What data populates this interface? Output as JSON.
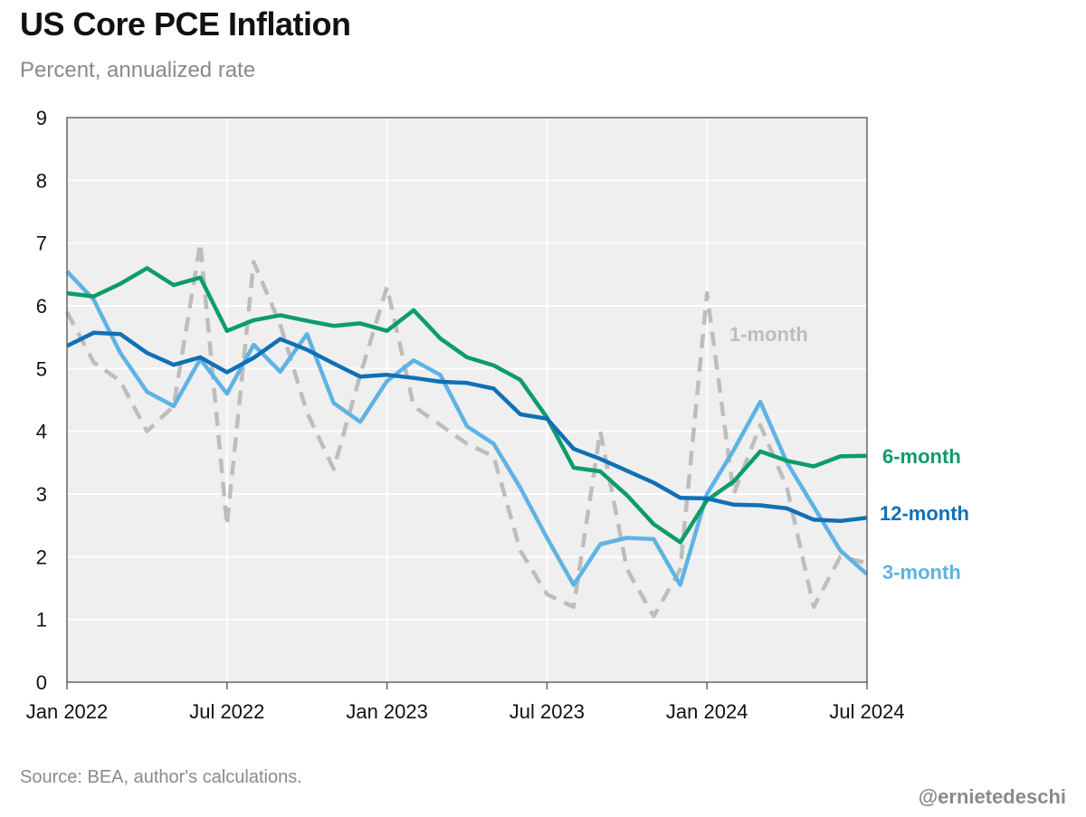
{
  "header": {
    "title": "US Core PCE Inflation",
    "subtitle": "Percent, annualized rate"
  },
  "footer": {
    "source": "Source: BEA, author's calculations.",
    "handle": "@ernietedeschi"
  },
  "chart_data": {
    "type": "line",
    "title": "US Core PCE Inflation",
    "subtitle": "Percent, annualized rate",
    "x": [
      "2022-01",
      "2022-02",
      "2022-03",
      "2022-04",
      "2022-05",
      "2022-06",
      "2022-07",
      "2022-08",
      "2022-09",
      "2022-10",
      "2022-11",
      "2022-12",
      "2023-01",
      "2023-02",
      "2023-03",
      "2023-04",
      "2023-05",
      "2023-06",
      "2023-07",
      "2023-08",
      "2023-09",
      "2023-10",
      "2023-11",
      "2023-12",
      "2024-01",
      "2024-02",
      "2024-03",
      "2024-04",
      "2024-05",
      "2024-06",
      "2024-07"
    ],
    "xticks": [
      {
        "x": "2022-01",
        "label": "Jan 2022"
      },
      {
        "x": "2022-07",
        "label": "Jul 2022"
      },
      {
        "x": "2023-01",
        "label": "Jan 2023"
      },
      {
        "x": "2023-07",
        "label": "Jul 2023"
      },
      {
        "x": "2024-01",
        "label": "Jan 2024"
      },
      {
        "x": "2024-07",
        "label": "Jul 2024"
      }
    ],
    "yticks": [
      "0",
      "1",
      "2",
      "3",
      "4",
      "5",
      "6",
      "7",
      "8",
      "9"
    ],
    "ylim": [
      0,
      9
    ],
    "grid": true,
    "series": [
      {
        "name": "1-month",
        "color": "#bdbdbd",
        "dashed": true,
        "values": [
          5.9,
          5.1,
          4.8,
          4.0,
          4.4,
          7.0,
          2.5,
          6.7,
          5.7,
          4.3,
          3.4,
          4.9,
          6.3,
          4.4,
          4.1,
          3.8,
          3.6,
          2.1,
          1.4,
          1.2,
          4.0,
          1.8,
          1.05,
          1.8,
          6.2,
          3.0,
          4.1,
          3.1,
          1.2,
          2.0,
          1.9
        ]
      },
      {
        "name": "3-month",
        "color": "#5eb3e4",
        "dashed": false,
        "values": [
          6.55,
          6.1,
          5.25,
          4.63,
          4.4,
          5.15,
          4.6,
          5.38,
          4.95,
          5.55,
          4.45,
          4.15,
          4.8,
          5.13,
          4.9,
          4.08,
          3.8,
          3.1,
          2.3,
          1.55,
          2.2,
          2.3,
          2.28,
          1.55,
          3.0,
          3.7,
          4.47,
          3.5,
          2.8,
          2.1,
          1.72
        ]
      },
      {
        "name": "6-month",
        "color": "#0d9c6a",
        "dashed": false,
        "values": [
          6.2,
          6.15,
          6.35,
          6.6,
          6.33,
          6.45,
          5.6,
          5.77,
          5.85,
          5.76,
          5.68,
          5.72,
          5.6,
          5.93,
          5.48,
          5.18,
          5.05,
          4.82,
          4.22,
          3.42,
          3.36,
          2.98,
          2.52,
          2.23,
          2.9,
          3.2,
          3.68,
          3.53,
          3.44,
          3.6,
          3.61
        ]
      },
      {
        "name": "12-month",
        "color": "#1170b5",
        "dashed": false,
        "values": [
          5.36,
          5.57,
          5.55,
          5.25,
          5.06,
          5.18,
          4.94,
          5.17,
          5.47,
          5.3,
          5.08,
          4.87,
          4.9,
          4.85,
          4.79,
          4.77,
          4.68,
          4.27,
          4.2,
          3.72,
          3.56,
          3.37,
          3.18,
          2.94,
          2.93,
          2.83,
          2.82,
          2.77,
          2.59,
          2.57,
          2.62
        ]
      }
    ]
  }
}
